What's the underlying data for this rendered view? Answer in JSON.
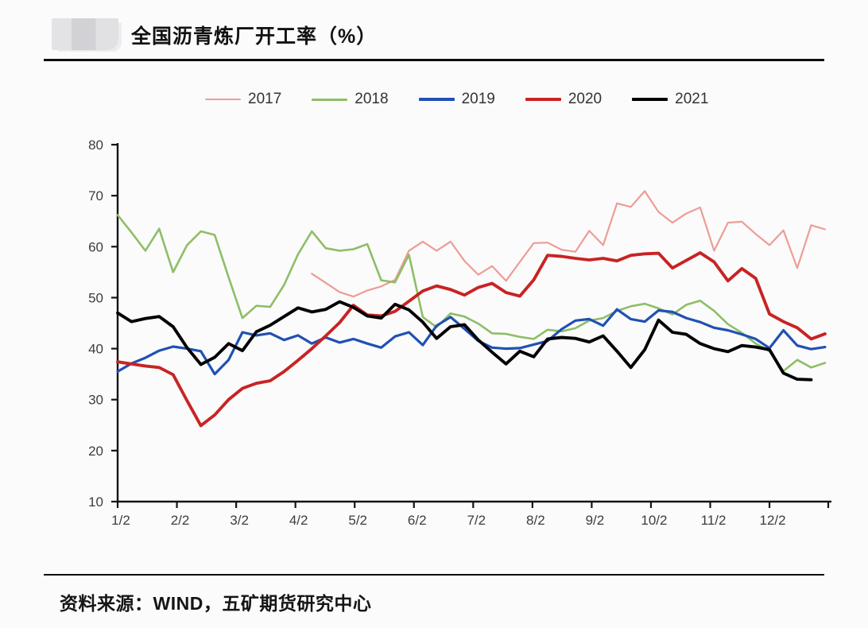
{
  "header": {
    "title": "全国沥青炼厂开工率（%）",
    "logo_icon": "company-logo-redacted"
  },
  "footer": {
    "source": "资料来源：WIND，五矿期货研究中心"
  },
  "chart_data": {
    "type": "line",
    "title": "全国沥青炼厂开工率（%）",
    "legend_position": "top",
    "grid": false,
    "x_axis": {
      "tick_labels": [
        "1/2",
        "2/2",
        "3/2",
        "4/2",
        "5/2",
        "6/2",
        "7/2",
        "8/2",
        "9/2",
        "10/2",
        "11/2",
        "12/2"
      ],
      "note": "weekly observations across one year; null = no data"
    },
    "y_axis": {
      "ticks": [
        10,
        20,
        30,
        40,
        50,
        60,
        70,
        80
      ],
      "range": [
        10,
        80
      ]
    },
    "series": [
      {
        "name": "2017",
        "color": "#EE9C96",
        "values": [
          null,
          null,
          null,
          null,
          null,
          null,
          null,
          null,
          null,
          null,
          null,
          null,
          null,
          null,
          54.7,
          52.9,
          51.1,
          50.2,
          51.4,
          52.2,
          53.5,
          59.2,
          61.0,
          59.2,
          61.0,
          57.2,
          54.5,
          56.2,
          53.3,
          57.0,
          60.7,
          60.8,
          59.4,
          59.0,
          63.1,
          60.3,
          68.5,
          67.8,
          70.9,
          66.8,
          64.7,
          66.5,
          67.7,
          59.2,
          64.7,
          64.9,
          62.5,
          60.3,
          63.2,
          55.8,
          64.2,
          63.4
        ]
      },
      {
        "name": "2018",
        "color": "#8EBE67",
        "values": [
          66.2,
          62.8,
          59.2,
          63.5,
          55.0,
          60.3,
          63.0,
          62.3,
          54.0,
          46.0,
          48.4,
          48.2,
          52.5,
          58.5,
          63.0,
          59.7,
          59.2,
          59.5,
          60.5,
          53.4,
          53.0,
          58.4,
          46.2,
          44.2,
          46.9,
          46.3,
          44.9,
          43.0,
          42.9,
          42.3,
          41.9,
          43.7,
          43.4,
          44.0,
          45.5,
          46.0,
          47.4,
          48.3,
          48.8,
          47.9,
          46.7,
          48.6,
          49.4,
          47.4,
          44.8,
          43.1,
          41.0,
          39.5,
          35.6,
          37.8,
          36.3,
          37.2
        ]
      },
      {
        "name": "2019",
        "color": "#2150B4",
        "values": [
          35.5,
          37.1,
          38.2,
          39.6,
          40.4,
          40.0,
          39.5,
          35.0,
          37.8,
          43.2,
          42.6,
          43.0,
          41.7,
          42.6,
          41.0,
          42.2,
          41.2,
          41.9,
          41.0,
          40.2,
          42.4,
          43.2,
          40.7,
          44.5,
          46.2,
          43.9,
          41.5,
          40.2,
          40.0,
          40.1,
          40.8,
          41.5,
          43.8,
          45.5,
          45.8,
          44.5,
          47.7,
          45.8,
          45.3,
          47.5,
          47.2,
          46.0,
          45.2,
          44.1,
          43.6,
          42.8,
          41.9,
          40.1,
          43.6,
          40.6,
          39.9,
          40.3
        ]
      },
      {
        "name": "2020",
        "color": "#C92323",
        "values": [
          37.4,
          37.0,
          36.6,
          36.3,
          34.9,
          29.8,
          24.9,
          27.0,
          30.0,
          32.2,
          33.2,
          33.7,
          35.5,
          37.7,
          40.0,
          42.5,
          45.1,
          48.5,
          46.6,
          46.4,
          47.3,
          49.3,
          51.3,
          52.3,
          51.6,
          50.5,
          52.0,
          52.8,
          51.0,
          50.3,
          53.5,
          58.3,
          58.1,
          57.7,
          57.4,
          57.7,
          57.2,
          58.3,
          58.6,
          58.7,
          55.8,
          57.3,
          58.8,
          57.0,
          53.3,
          55.7,
          53.8,
          46.8,
          45.3,
          44.1,
          41.9,
          42.9
        ]
      },
      {
        "name": "2021",
        "color": "#000000",
        "values": [
          47.0,
          45.3,
          45.9,
          46.3,
          44.3,
          40.2,
          36.9,
          38.3,
          41.0,
          39.6,
          43.3,
          44.6,
          46.3,
          48.0,
          47.2,
          47.7,
          49.2,
          48.1,
          46.4,
          46.0,
          48.7,
          47.6,
          45.2,
          42.0,
          44.3,
          44.7,
          41.7,
          39.3,
          37.0,
          39.5,
          38.4,
          41.9,
          42.2,
          42.0,
          41.3,
          42.5,
          39.5,
          36.3,
          39.8,
          45.6,
          43.2,
          42.8,
          41.0,
          40.0,
          39.4,
          40.6,
          40.3,
          39.8,
          35.2,
          34.0,
          33.9,
          null
        ]
      }
    ]
  }
}
